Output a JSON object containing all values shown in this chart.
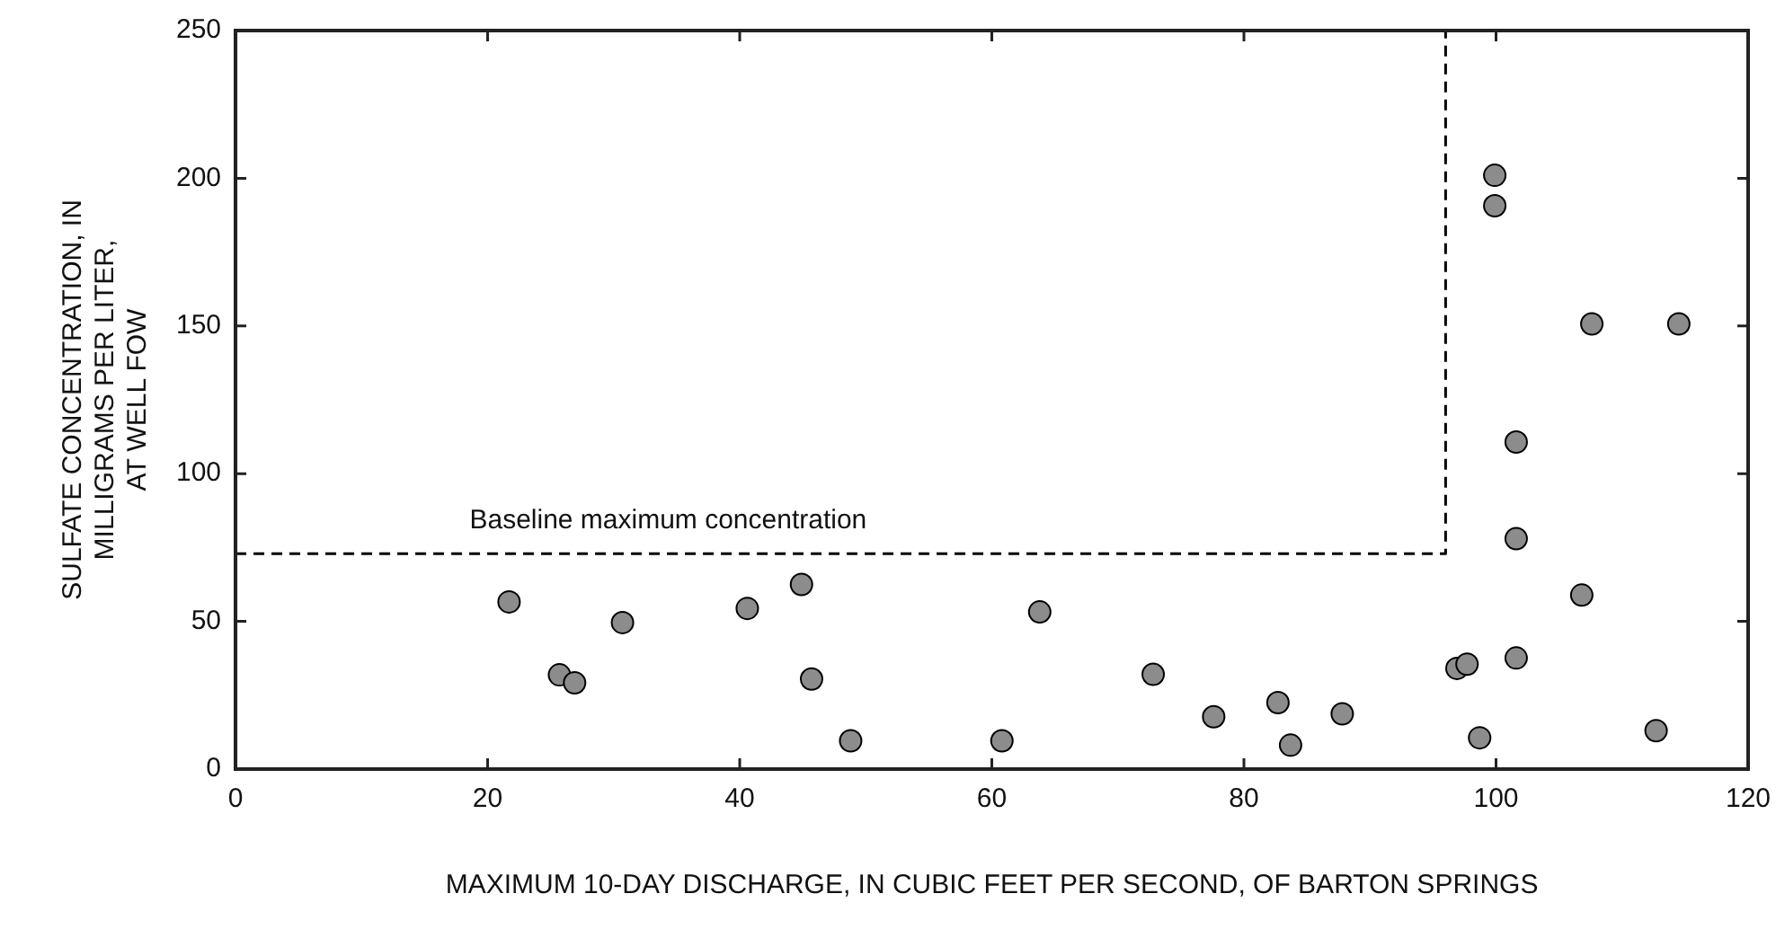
{
  "chart_data": {
    "type": "scatter",
    "xlabel": "MAXIMUM 10-DAY DISCHARGE, IN CUBIC FEET PER SECOND, OF BARTON SPRINGS",
    "ylabel": "SULFATE CONCENTRATION, IN\nMILLIGRAMS PER LITER,\nAT WELL FOW",
    "xlim": [
      0,
      120
    ],
    "xticks": [
      0,
      20,
      40,
      60,
      80,
      100,
      120
    ],
    "ylim": [
      0,
      250
    ],
    "yticks": [
      0,
      50,
      100,
      150,
      200,
      250
    ],
    "grid": false,
    "legend": false,
    "marker": "circle",
    "series": [
      {
        "color": "#8c8c8c",
        "x": [
          21.7,
          25.7,
          26.9,
          30.7,
          40.6,
          44.9,
          45.7,
          48.8,
          60.8,
          63.8,
          72.8,
          77.6,
          82.7,
          83.7,
          87.8,
          96.9,
          97.7,
          98.7,
          101.6,
          101.6,
          106.8,
          112.7,
          99.9,
          99.9,
          107.6,
          114.5,
          101.6
        ],
        "values": [
          56.6,
          31.9,
          29.2,
          49.6,
          54.4,
          62.5,
          30.5,
          9.6,
          9.6,
          53.2,
          32.1,
          17.7,
          22.5,
          8.1,
          18.7,
          34.1,
          35.5,
          10.6,
          37.6,
          78,
          58.9,
          13,
          201,
          190.7,
          150.7,
          150.7,
          110.7
        ]
      },
      {
        "type": "line",
        "color": "#000000",
        "line_style": "dashed",
        "marker": "none",
        "x": [
          0,
          96,
          96
        ],
        "values": [
          72.9,
          72.9,
          250
        ]
      }
    ],
    "annotations": [
      "Baseline maximum concentration"
    ]
  }
}
